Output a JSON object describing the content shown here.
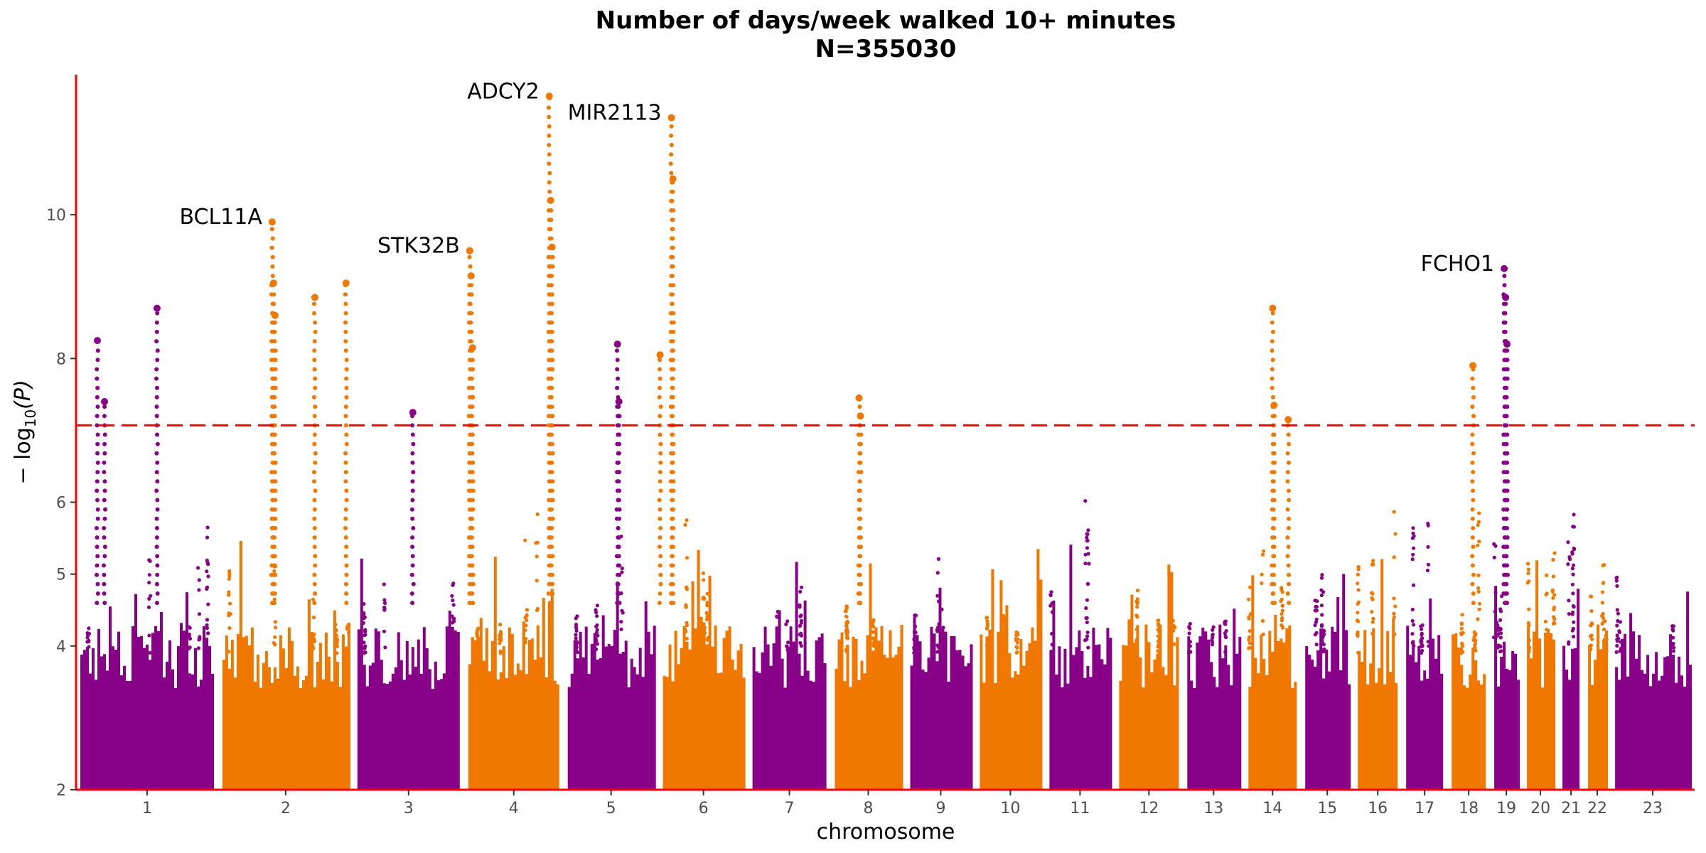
{
  "chart_data": {
    "type": "scatter",
    "subtype": "manhattan",
    "title": "Number of days/week walked 10+ minutes",
    "subtitle": "N=355030",
    "xlabel": "chromosome",
    "ylabel_prefix": "− log",
    "ylabel_sub": "10",
    "ylabel_suffix": "(P)",
    "ylim": [
      2,
      11.9
    ],
    "yticks": [
      2,
      4,
      5,
      6,
      8,
      10
    ],
    "threshold": 7.07,
    "threshold_color": "#ff0000",
    "axis_color": "#ff0000",
    "grid": false,
    "colors": [
      "#880088",
      "#f07800"
    ],
    "chromosomes": [
      {
        "name": "1",
        "start": 0,
        "end": 1
      },
      {
        "name": "2",
        "start": 1,
        "end": 1.95
      },
      {
        "name": "3",
        "start": 1.95,
        "end": 2.73
      },
      {
        "name": "4",
        "start": 2.73,
        "end": 3.43
      },
      {
        "name": "5",
        "start": 3.43,
        "end": 4.1
      },
      {
        "name": "6",
        "start": 4.1,
        "end": 4.73
      },
      {
        "name": "7",
        "start": 4.73,
        "end": 5.31
      },
      {
        "name": "8",
        "start": 5.31,
        "end": 5.84
      },
      {
        "name": "9",
        "start": 5.84,
        "end": 6.33
      },
      {
        "name": "10",
        "start": 6.33,
        "end": 6.82
      },
      {
        "name": "11",
        "start": 6.82,
        "end": 7.31
      },
      {
        "name": "12",
        "start": 7.31,
        "end": 7.79
      },
      {
        "name": "13",
        "start": 7.79,
        "end": 8.22
      },
      {
        "name": "14",
        "start": 8.22,
        "end": 8.62
      },
      {
        "name": "15",
        "start": 8.62,
        "end": 8.99
      },
      {
        "name": "16",
        "start": 8.99,
        "end": 9.33
      },
      {
        "name": "17",
        "start": 9.33,
        "end": 9.65
      },
      {
        "name": "18",
        "start": 9.65,
        "end": 9.95
      },
      {
        "name": "19",
        "start": 9.95,
        "end": 10.18
      },
      {
        "name": "20",
        "start": 10.18,
        "end": 10.43
      },
      {
        "name": "21",
        "start": 10.43,
        "end": 10.61
      },
      {
        "name": "22",
        "start": 10.61,
        "end": 10.8
      },
      {
        "name": "23",
        "start": 10.8,
        "end": 11.39
      }
    ],
    "peaks": [
      {
        "x": 0.15,
        "y": 8.25
      },
      {
        "x": 0.2,
        "y": 7.4
      },
      {
        "x": 0.57,
        "y": 8.7
      },
      {
        "x": 1.38,
        "y": 9.9
      },
      {
        "x": 1.39,
        "y": 9.05
      },
      {
        "x": 1.4,
        "y": 8.6
      },
      {
        "x": 1.68,
        "y": 8.85
      },
      {
        "x": 1.9,
        "y": 9.05
      },
      {
        "x": 2.37,
        "y": 7.25
      },
      {
        "x": 2.77,
        "y": 9.5
      },
      {
        "x": 2.78,
        "y": 9.15
      },
      {
        "x": 2.79,
        "y": 8.15
      },
      {
        "x": 3.33,
        "y": 11.65
      },
      {
        "x": 3.34,
        "y": 10.2
      },
      {
        "x": 3.35,
        "y": 9.55
      },
      {
        "x": 3.81,
        "y": 8.2
      },
      {
        "x": 3.82,
        "y": 7.4
      },
      {
        "x": 4.11,
        "y": 8.05
      },
      {
        "x": 4.19,
        "y": 11.35
      },
      {
        "x": 4.2,
        "y": 10.5
      },
      {
        "x": 5.51,
        "y": 7.45
      },
      {
        "x": 5.52,
        "y": 7.2
      },
      {
        "x": 8.42,
        "y": 8.7
      },
      {
        "x": 8.43,
        "y": 7.35
      },
      {
        "x": 8.53,
        "y": 7.15
      },
      {
        "x": 9.83,
        "y": 7.9
      },
      {
        "x": 10.05,
        "y": 9.25
      },
      {
        "x": 10.06,
        "y": 8.85
      },
      {
        "x": 10.07,
        "y": 8.2
      }
    ],
    "annotations": [
      {
        "label": "BCL11A",
        "x": 1.38,
        "y": 9.9
      },
      {
        "label": "STK32B",
        "x": 2.77,
        "y": 9.5
      },
      {
        "label": "ADCY2",
        "x": 3.33,
        "y": 11.65
      },
      {
        "label": "MIR2113",
        "x": 4.19,
        "y": 11.35
      },
      {
        "label": "FCHO1",
        "x": 10.05,
        "y": 9.25
      }
    ]
  }
}
